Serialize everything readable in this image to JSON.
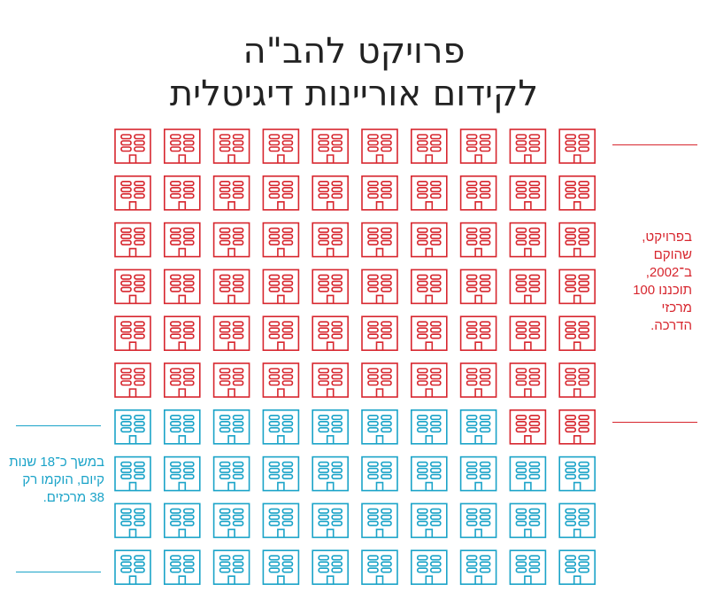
{
  "title": {
    "line1": "פרויקט להב\"ה",
    "line2": "לקידום אוריינות דיגיטלית"
  },
  "notes": {
    "red": "בפרויקט, שהוקם ב־2002, תוכננו 100 מרכזי הדרכה.",
    "blue": "במשך כ־18 שנות קיום, הוקמו רק 38 מרכזים."
  },
  "colors": {
    "planned": "#d7262e",
    "built": "#1aa3c8",
    "title": "#222222"
  },
  "chart_data": {
    "type": "pictogram",
    "total_planned": 100,
    "built": 38,
    "not_built": 62,
    "rows": 10,
    "columns": 10,
    "icon": "building-icon"
  }
}
